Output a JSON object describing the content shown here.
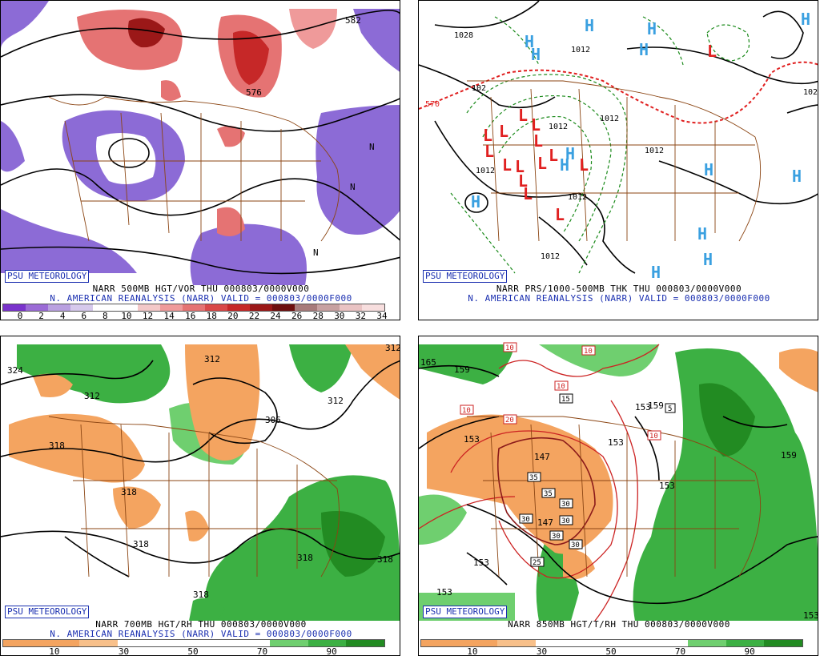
{
  "panels": [
    {
      "badge": "PSU METEOROLOGY",
      "caption_line1": "NARR 500MB HGT/VOR THU 000803/0000V000",
      "caption_line2": "N. AMERICAN REANALYSIS (NARR) VALID = 000803/0000F000",
      "contour_labels": [
        "582",
        "576",
        "N",
        "N",
        "N"
      ],
      "colorbar": {
        "colors": [
          "#7a33cc",
          "#9b6bd6",
          "#b9a0e0",
          "#d6c9ec",
          "#ffffff",
          "#ffffff",
          "#f3c8c8",
          "#ef9a9a",
          "#e57373",
          "#d94848",
          "#c62828",
          "#9b1818",
          "#6e0f0f",
          "#a77b7b",
          "#c7a1a1",
          "#e9c3c3",
          "#f7dede"
        ],
        "ticks": [
          "0",
          "2",
          "4",
          "6",
          "8",
          "10",
          "12",
          "14",
          "16",
          "18",
          "20",
          "22",
          "24",
          "26",
          "28",
          "30",
          "32",
          "34"
        ]
      }
    },
    {
      "badge": "PSU METEOROLOGY",
      "caption_line1": "NARR PRS/1000-500MB THK THU 000803/0000V000",
      "caption_line2": "N. AMERICAN REANALYSIS (NARR) VALID = 000803/0000F000",
      "contour_labels": [
        "1028",
        "1012",
        "1012",
        "1012",
        "1012",
        "1012",
        "1012",
        "570",
        "102",
        "102",
        "1012"
      ],
      "highs": [
        "H",
        "H",
        "H",
        "H",
        "H",
        "H",
        "H",
        "H",
        "H",
        "H",
        "H",
        "H",
        "H",
        "H"
      ],
      "lows": [
        "L",
        "L",
        "L",
        "L",
        "L",
        "L",
        "L",
        "L",
        "L",
        "L",
        "L",
        "L",
        "L",
        "L",
        "L"
      ]
    },
    {
      "badge": "PSU METEOROLOGY",
      "caption_line1": "NARR 700MB HGT/RH THU 000803/0000V000",
      "caption_line2": "N. AMERICAN REANALYSIS (NARR) VALID = 000803/0000F000",
      "contour_labels": [
        "324",
        "312",
        "312",
        "312",
        "306",
        "312",
        "318",
        "318",
        "318",
        "318",
        "318",
        "318"
      ],
      "colorbar": {
        "colors": [
          "#f4a460",
          "#f4a460",
          "#f8c08a",
          "#ffffff",
          "#ffffff",
          "#ffffff",
          "#ffffff",
          "#6fcf6f",
          "#3cb043",
          "#228b22"
        ],
        "ticks": [
          "10",
          "30",
          "50",
          "70",
          "90"
        ]
      }
    },
    {
      "badge": "PSU METEOROLOGY",
      "caption_line1": "NARR 850MB HGT/T/RH THU 000803/0000V000",
      "caption_line2": "",
      "contour_labels": [
        "165",
        "159",
        "153",
        "147",
        "153",
        "159",
        "159",
        "153",
        "147",
        "153",
        "153",
        "153",
        "153"
      ],
      "temp_labels": [
        "10",
        "10",
        "10",
        "15",
        "20",
        "10",
        "10",
        "5",
        "35",
        "35",
        "30",
        "30",
        "30",
        "30",
        "30",
        "25"
      ],
      "colorbar": {
        "colors": [
          "#f4a460",
          "#f4a460",
          "#f8c08a",
          "#ffffff",
          "#ffffff",
          "#ffffff",
          "#ffffff",
          "#6fcf6f",
          "#3cb043",
          "#228b22"
        ],
        "ticks": [
          "10",
          "30",
          "50",
          "70",
          "90"
        ]
      }
    }
  ]
}
